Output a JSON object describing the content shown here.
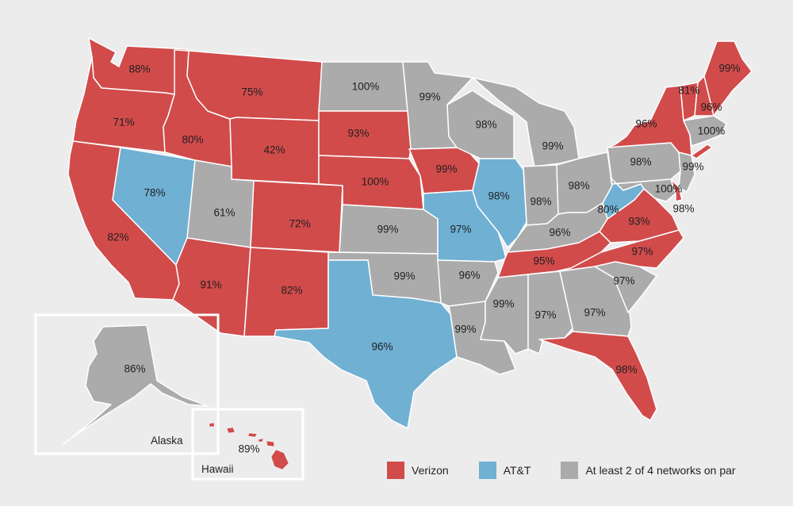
{
  "legend": {
    "verizon": {
      "label": "Verizon",
      "color": "#d14b4b"
    },
    "att": {
      "label": "AT&T",
      "color": "#6fb0d3"
    },
    "par": {
      "label": "At least 2 of 4 networks on par",
      "color": "#ababab"
    }
  },
  "insets": {
    "alaska": {
      "name": "Alaska",
      "value": "86%",
      "winner": "par"
    },
    "hawaii": {
      "name": "Hawaii",
      "value": "89%",
      "winner": "verizon"
    }
  },
  "states": {
    "WA": {
      "value": "88%",
      "winner": "verizon"
    },
    "OR": {
      "value": "71%",
      "winner": "verizon"
    },
    "CA": {
      "value": "82%",
      "winner": "verizon"
    },
    "NV": {
      "value": "78%",
      "winner": "att"
    },
    "ID": {
      "value": "80%",
      "winner": "verizon"
    },
    "MT": {
      "value": "75%",
      "winner": "verizon"
    },
    "WY": {
      "value": "42%",
      "winner": "verizon"
    },
    "UT": {
      "value": "61%",
      "winner": "par"
    },
    "AZ": {
      "value": "91%",
      "winner": "verizon"
    },
    "CO": {
      "value": "72%",
      "winner": "verizon"
    },
    "NM": {
      "value": "82%",
      "winner": "verizon"
    },
    "ND": {
      "value": "100%",
      "winner": "par"
    },
    "SD": {
      "value": "93%",
      "winner": "verizon"
    },
    "NE": {
      "value": "100%",
      "winner": "verizon"
    },
    "KS": {
      "value": "99%",
      "winner": "par"
    },
    "OK": {
      "value": "99%",
      "winner": "par"
    },
    "TX": {
      "value": "96%",
      "winner": "att"
    },
    "MN": {
      "value": "99%",
      "winner": "par"
    },
    "IA": {
      "value": "99%",
      "winner": "verizon"
    },
    "MO": {
      "value": "97%",
      "winner": "att"
    },
    "AR": {
      "value": "96%",
      "winner": "par"
    },
    "LA": {
      "value": "99%",
      "winner": "par"
    },
    "WI": {
      "value": "98%",
      "winner": "par"
    },
    "IL": {
      "value": "98%",
      "winner": "att"
    },
    "MI": {
      "value": "99%",
      "winner": "par"
    },
    "IN": {
      "value": "98%",
      "winner": "par"
    },
    "OH": {
      "value": "98%",
      "winner": "par"
    },
    "KY": {
      "value": "96%",
      "winner": "par"
    },
    "TN": {
      "value": "95%",
      "winner": "verizon"
    },
    "MS": {
      "value": "99%",
      "winner": "par"
    },
    "AL": {
      "value": "97%",
      "winner": "par"
    },
    "GA": {
      "value": "97%",
      "winner": "par"
    },
    "FL": {
      "value": "98%",
      "winner": "verizon"
    },
    "SC": {
      "value": "97%",
      "winner": "par"
    },
    "NC": {
      "value": "97%",
      "winner": "verizon"
    },
    "VA": {
      "value": "93%",
      "winner": "verizon"
    },
    "WV": {
      "value": "80%",
      "winner": "att"
    },
    "PA": {
      "value": "98%",
      "winner": "par"
    },
    "NY": {
      "value": "96%",
      "winner": "verizon"
    },
    "NJ": {
      "value": "99%",
      "winner": "par"
    },
    "MD": {
      "value": "100%",
      "winner": "par"
    },
    "DE": {
      "value": "98%",
      "winner": "verizon"
    },
    "VT": {
      "value": "81%",
      "winner": "verizon"
    },
    "NH": {
      "value": "96%",
      "winner": "verizon"
    },
    "ME": {
      "value": "99%",
      "winner": "verizon"
    },
    "MA_CT_RI": {
      "value": "100%",
      "winner": "par"
    }
  }
}
